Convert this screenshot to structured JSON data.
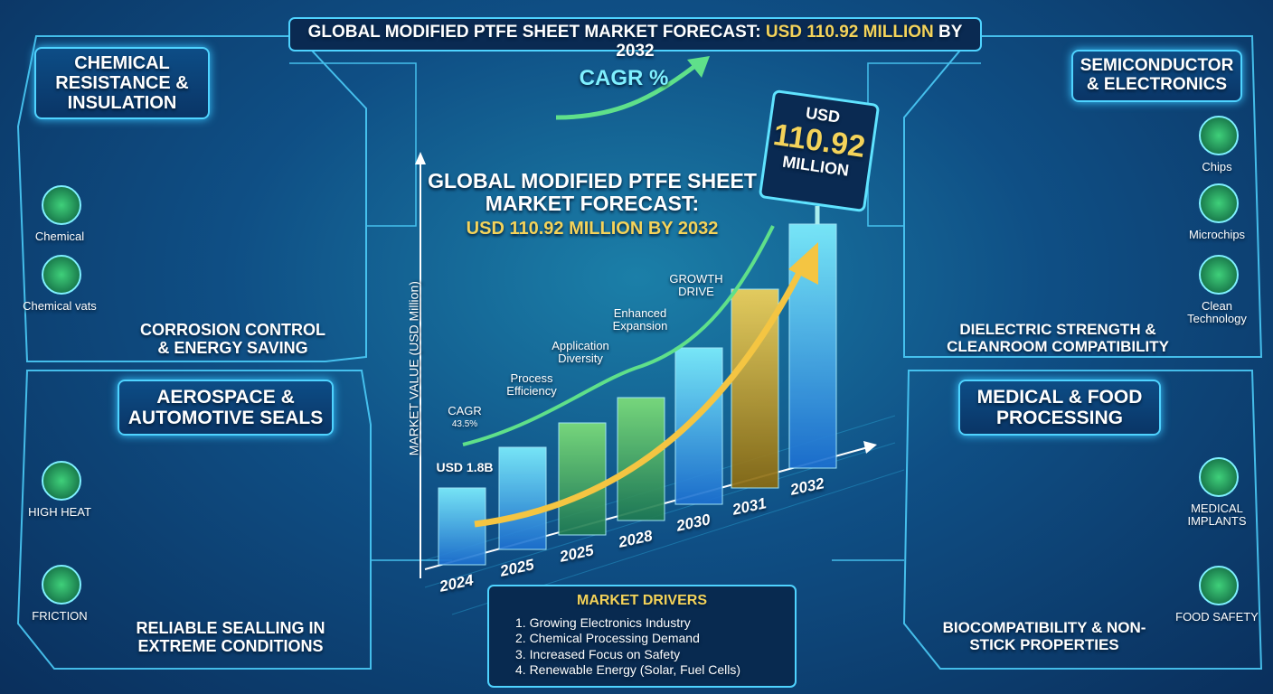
{
  "header": {
    "title_prefix": "GLOBAL MODIFIED PTFE SHEET MARKET FORECAST:",
    "title_highlight": "USD 110.92 MILLION",
    "title_suffix": "BY 2032"
  },
  "center": {
    "cagr_badge": "CAGR %",
    "forecast_title": "GLOBAL MODIFIED PTFE SHEET MARKET FORECAST:",
    "forecast_value": "USD 110.92 MILLION BY 2032",
    "sign": {
      "currency": "USD",
      "amount": "110.92",
      "unit": "MILLION"
    },
    "y_axis_label": "MARKET VALUE (USD Million)",
    "start_label": "USD 1.8B",
    "years": [
      "2024",
      "2025",
      "2025",
      "2028",
      "2030",
      "2031",
      "2032"
    ],
    "milestones": [
      {
        "label": "CAGR",
        "sub": "43.5%"
      },
      {
        "label": "Process Efficiency"
      },
      {
        "label": "Application Diversity"
      },
      {
        "label": "Enhanced Expansion"
      },
      {
        "label": "GROWTH DRIVE"
      }
    ]
  },
  "drivers": {
    "title": "MARKET DRIVERS",
    "items": [
      "1. Growing Electronics Industry",
      "2. Chemical Processing Demand",
      "3. Increased Focus on Safety",
      "4. Renewable Energy (Solar, Fuel Cells)"
    ]
  },
  "panels": [
    {
      "title": "CHEMICAL RESISTANCE & INSULATION",
      "icons": [
        "Chemical",
        "Chemical vats"
      ],
      "caption": "CORROSION CONTROL & ENERGY SAVING"
    },
    {
      "title": "AEROSPACE & AUTOMOTIVE SEALS",
      "icons": [
        "HIGH HEAT",
        "FRICTION"
      ],
      "caption": "RELIABLE SEALLING IN EXTREME CONDITIONS"
    },
    {
      "title": "SEMICONDUCTOR & ELECTRONICS",
      "icons": [
        "Chips",
        "Microchips",
        "Clean Technology"
      ],
      "caption": "DIELECTRIC STRENGTH & CLEANROOM COMPATIBILITY"
    },
    {
      "title": "MEDICAL & FOOD PROCESSING",
      "icons": [
        "MEDICAL IMPLANTS",
        "FOOD SAFETY"
      ],
      "caption": "BIOCOMPATIBILITY & NON-STICK PROPERTIES"
    }
  ]
}
